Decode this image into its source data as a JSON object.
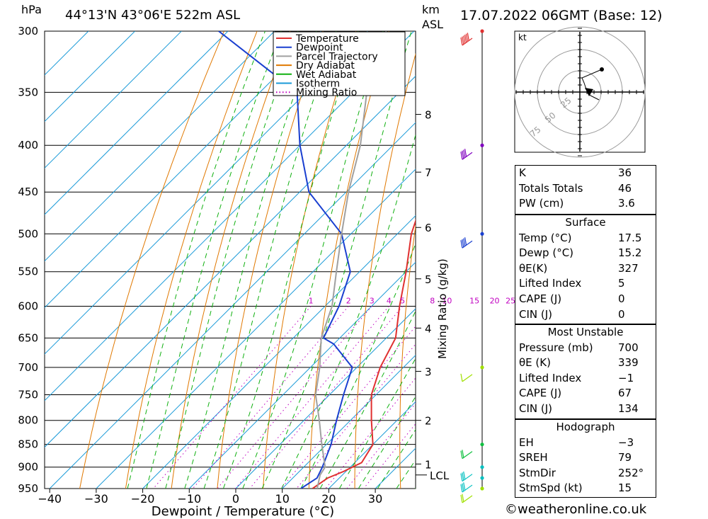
{
  "header": {
    "pressure_unit": "hPa",
    "location": "44°13'N  43°06'E  522m  ASL",
    "km_unit": "km",
    "asl_unit": "ASL",
    "datetime": "17.07.2022  06GMT  (Base: 12)"
  },
  "chart_data": {
    "type": "line",
    "title": "",
    "xlabel": "Dewpoint / Temperature (°C)",
    "ylabel": "hPa",
    "right_axis_label": "Mixing Ratio (g/kg)",
    "ylim": [
      950,
      300
    ],
    "xlim": [
      -40,
      35
    ],
    "pressure_ticks": [
      300,
      350,
      400,
      450,
      500,
      550,
      600,
      650,
      700,
      750,
      800,
      850,
      900,
      950
    ],
    "temperature_ticks": [
      -40,
      -30,
      -20,
      -10,
      0,
      10,
      20,
      30
    ],
    "temperature_tick_labels": [
      "−40",
      "−30",
      "−20",
      "−10",
      "0",
      "10",
      "20",
      "30"
    ],
    "km_ticks": [
      {
        "label": "8",
        "p": 370
      },
      {
        "label": "7",
        "p": 428
      },
      {
        "label": "6",
        "p": 492
      },
      {
        "label": "5",
        "p": 560
      },
      {
        "label": "4",
        "p": 634
      },
      {
        "label": "3",
        "p": 707
      },
      {
        "label": "2",
        "p": 800
      },
      {
        "label": "1",
        "p": 893
      }
    ],
    "lcl": {
      "label": "LCL",
      "p": 918
    },
    "mixing_ratio_labels": [
      "1",
      "2",
      "3",
      "4",
      "5",
      "8",
      "10",
      "15",
      "20",
      "25"
    ],
    "mixing_ratio_values": [
      1,
      2,
      3,
      4,
      5,
      8,
      10,
      15,
      20,
      25
    ],
    "mixing_ratio_label_p": 600,
    "legend": [
      "Temperature",
      "Dewpoint",
      "Parcel Trajectory",
      "Dry Adiabat",
      "Wet Adiabat",
      "Isotherm",
      "Mixing Ratio"
    ],
    "legend_placement": "top-center",
    "series": [
      {
        "name": "Temperature",
        "color": "#e03030",
        "points": [
          [
            950,
            16.5
          ],
          [
            925,
            17.5
          ],
          [
            910,
            19.5
          ],
          [
            890,
            21.5
          ],
          [
            850,
            20.0
          ],
          [
            800,
            14.5
          ],
          [
            750,
            9.0
          ],
          [
            700,
            5.0
          ],
          [
            650,
            2.0
          ],
          [
            600,
            -4.0
          ],
          [
            550,
            -10.0
          ],
          [
            500,
            -17.0
          ],
          [
            450,
            -23.0
          ],
          [
            400,
            -30.0
          ],
          [
            350,
            -38.5
          ],
          [
            300,
            -47.0
          ]
        ]
      },
      {
        "name": "Dewpoint",
        "color": "#1a3fd0",
        "points": [
          [
            950,
            14.0
          ],
          [
            925,
            15.2
          ],
          [
            900,
            14.0
          ],
          [
            850,
            11.0
          ],
          [
            800,
            7.0
          ],
          [
            750,
            3.0
          ],
          [
            700,
            -1.0
          ],
          [
            660,
            -10.0
          ],
          [
            650,
            -13.5
          ],
          [
            600,
            -17.0
          ],
          [
            550,
            -22.0
          ],
          [
            500,
            -32.0
          ],
          [
            450,
            -48.0
          ],
          [
            400,
            -60.0
          ],
          [
            350,
            -72.0
          ],
          [
            300,
            -102.0
          ]
        ]
      },
      {
        "name": "Parcel Trajectory",
        "color": "#a0a0a0",
        "points": [
          [
            950,
            17.5
          ],
          [
            918,
            15.2
          ],
          [
            900,
            14.6
          ],
          [
            850,
            9.0
          ],
          [
            800,
            3.3
          ],
          [
            750,
            -3.0
          ],
          [
            700,
            -8.0
          ],
          [
            650,
            -14.0
          ],
          [
            600,
            -18.5
          ],
          [
            550,
            -25.0
          ],
          [
            500,
            -32.0
          ],
          [
            450,
            -39.5
          ],
          [
            400,
            -47.0
          ],
          [
            350,
            -57.0
          ],
          [
            300,
            -66.0
          ]
        ]
      }
    ]
  },
  "wind_profile": {
    "color_scale": [
      "#e03030",
      "#8000c0",
      "#1a3fd0",
      "#a0e000",
      "#10c040",
      "#00c0c0",
      "#a0e000"
    ],
    "levels": [
      {
        "p": 300,
        "color": "#e03030",
        "speed_kt": 65
      },
      {
        "p": 400,
        "color": "#8000c0",
        "speed_kt": 40
      },
      {
        "p": 500,
        "color": "#1a3fd0",
        "speed_kt": 35
      },
      {
        "p": 700,
        "color": "#a0e000",
        "speed_kt": 5
      },
      {
        "p": 850,
        "color": "#10c040",
        "speed_kt": 15
      },
      {
        "p": 900,
        "color": "#00c0c0",
        "speed_kt": 25
      },
      {
        "p": 925,
        "color": "#00c0c0",
        "speed_kt": 25
      },
      {
        "p": 950,
        "color": "#a0e000",
        "speed_kt": 20
      }
    ]
  },
  "hodograph": {
    "unit": "kt",
    "ring_labels": [
      "25",
      "50",
      "75"
    ]
  },
  "indices": {
    "rows": [
      {
        "key": "K",
        "value": "36"
      },
      {
        "key": "Totals Totals",
        "value": "46"
      },
      {
        "key": "PW (cm)",
        "value": "3.6"
      }
    ]
  },
  "surface": {
    "title": "Surface",
    "rows": [
      {
        "key": "Temp (°C)",
        "value": "17.5"
      },
      {
        "key": "Dewp (°C)",
        "value": "15.2"
      },
      {
        "key": "θE(K)",
        "value": "327"
      },
      {
        "key": "Lifted Index",
        "value": "5"
      },
      {
        "key": "CAPE (J)",
        "value": "0"
      },
      {
        "key": "CIN (J)",
        "value": "0"
      }
    ]
  },
  "most_unstable": {
    "title": "Most Unstable",
    "rows": [
      {
        "key": "Pressure (mb)",
        "value": "700"
      },
      {
        "key": "θE (K)",
        "value": "339"
      },
      {
        "key": "Lifted Index",
        "value": "−1"
      },
      {
        "key": "CAPE (J)",
        "value": "67"
      },
      {
        "key": "CIN (J)",
        "value": "134"
      }
    ]
  },
  "hodograph_params": {
    "title": "Hodograph",
    "rows": [
      {
        "key": "EH",
        "value": "−3"
      },
      {
        "key": "SREH",
        "value": "79"
      },
      {
        "key": "StmDir",
        "value": "252°"
      },
      {
        "key": "StmSpd (kt)",
        "value": "15"
      }
    ]
  },
  "footer": {
    "copyright": "©weatheronline.co.uk"
  },
  "colors": {
    "temperature": "#e03030",
    "dewpoint": "#1a3fd0",
    "parcel": "#a0a0a0",
    "dry_adiabat": "#e07800",
    "wet_adiabat": "#10b010",
    "isotherm": "#1a9ad8",
    "mixing_ratio": "#c000c0"
  }
}
